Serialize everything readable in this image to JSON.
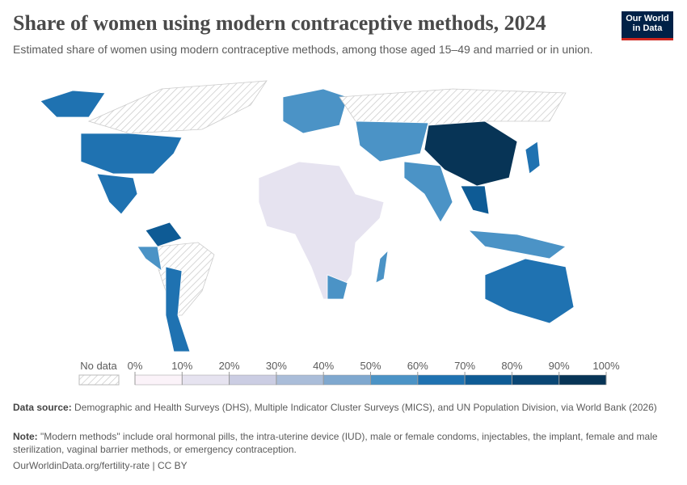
{
  "header": {
    "title": "Share of women using modern contraceptive methods, 2024",
    "subtitle": "Estimated share of women using modern contraceptive methods, among those aged 15–49 and married or in union.",
    "logo": "Our World in Data"
  },
  "legend": {
    "no_data": "No data",
    "ticks": [
      {
        "value": 0,
        "label": "0%"
      },
      {
        "value": 10,
        "label": "10%"
      },
      {
        "value": 20,
        "label": "20%"
      },
      {
        "value": 30,
        "label": "30%"
      },
      {
        "value": 40,
        "label": "40%"
      },
      {
        "value": 50,
        "label": "50%"
      },
      {
        "value": 60,
        "label": "60%"
      },
      {
        "value": 70,
        "label": "70%"
      },
      {
        "value": 80,
        "label": "80%"
      },
      {
        "value": 90,
        "label": "90%"
      },
      {
        "value": 100,
        "label": "100%"
      }
    ],
    "colors": [
      "#fbf3f9",
      "#e6e3f0",
      "#cbcde3",
      "#aabdd9",
      "#7fa8cf",
      "#4b93c6",
      "#1f72b1",
      "#0e5b95",
      "#0a4674",
      "#073456"
    ]
  },
  "footer": {
    "source_label": "Data source:",
    "source_text": "Demographic and Health Surveys (DHS), Multiple Indicator Cluster Surveys (MICS), and UN Population Division, via World Bank (2026)",
    "note_label": "Note:",
    "note_text": "\"Modern methods\" include oral hormonal pills, the intra-uterine device (IUD), male or female condoms, injectables, the implant, female and male sterilization, vaginal barrier methods, or emergency contraception.",
    "url": "OurWorldinData.org/fertility-rate | CC BY"
  }
}
